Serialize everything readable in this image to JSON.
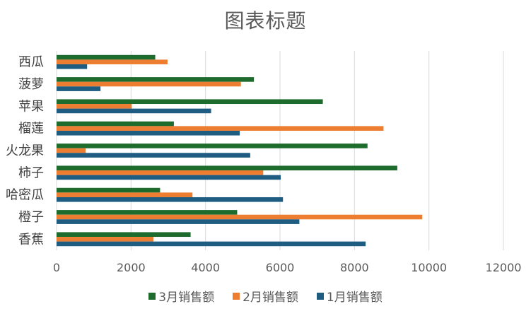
{
  "chart_data": {
    "type": "bar",
    "orientation": "horizontal",
    "title": "图表标题",
    "categories": [
      "西瓜",
      "菠萝",
      "苹果",
      "榴莲",
      "火龙果",
      "柿子",
      "哈密瓜",
      "橙子",
      "香蕉"
    ],
    "series": [
      {
        "name": "3月销售额",
        "color": "#1E6B2E",
        "values": [
          2650,
          5300,
          7150,
          3150,
          8350,
          9150,
          2780,
          4850,
          3600
        ]
      },
      {
        "name": "2月销售额",
        "color": "#ED7D31",
        "values": [
          2980,
          4950,
          2020,
          8780,
          780,
          5550,
          3650,
          9820,
          2600
        ]
      },
      {
        "name": "1月销售额",
        "color": "#1F5C82",
        "values": [
          820,
          1180,
          4150,
          4920,
          5200,
          6020,
          6080,
          6520,
          8300
        ]
      }
    ],
    "xlim": [
      0,
      12000
    ],
    "xticks": [
      "0",
      "2000",
      "4000",
      "6000",
      "8000",
      "10000",
      "12000"
    ],
    "grid": true,
    "legend": "bottom",
    "xlabel": "",
    "ylabel": ""
  }
}
